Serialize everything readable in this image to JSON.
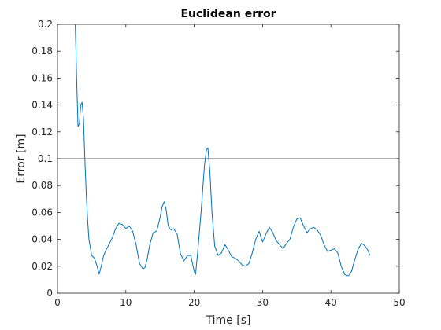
{
  "chart_data": {
    "type": "line",
    "title": "Euclidean error",
    "xlabel": "Time [s]",
    "ylabel": "Error [m]",
    "xlim": [
      0,
      50
    ],
    "ylim": [
      0,
      0.2
    ],
    "xticks": [
      0,
      10,
      20,
      30,
      40,
      50
    ],
    "xtick_labels": [
      "0",
      "10",
      "20",
      "30",
      "40",
      "50"
    ],
    "yticks": [
      0,
      0.02,
      0.04,
      0.06,
      0.08,
      0.1,
      0.12,
      0.14,
      0.16,
      0.18,
      0.2
    ],
    "ytick_labels": [
      "0",
      "0.02",
      "0.04",
      "0.06",
      "0.08",
      "0.1",
      "0.12",
      "0.14",
      "0.16",
      "0.18",
      "0.2"
    ],
    "grid": false,
    "legend": "none",
    "series": [
      {
        "color": "#0072bd",
        "x": [
          2.6,
          2.8,
          3.0,
          3.2,
          3.4,
          3.6,
          3.8,
          4.0,
          4.2,
          4.4,
          4.6,
          5.0,
          5.4,
          5.8,
          6.1,
          6.4,
          6.7,
          7.0,
          7.5,
          8.0,
          8.5,
          9.0,
          9.5,
          10.0,
          10.5,
          11.0,
          11.5,
          12.0,
          12.5,
          12.8,
          13.1,
          13.5,
          14.0,
          14.5,
          15.0,
          15.3,
          15.6,
          15.9,
          16.2,
          16.6,
          17.0,
          17.5,
          18.0,
          18.5,
          19.0,
          19.5,
          20.0,
          20.2,
          20.5,
          21.0,
          21.5,
          21.8,
          22.0,
          22.3,
          22.6,
          23.0,
          23.5,
          24.0,
          24.5,
          25.0,
          25.5,
          26.0,
          26.5,
          27.0,
          27.5,
          28.0,
          28.5,
          29.0,
          29.5,
          30.0,
          30.5,
          31.0,
          31.5,
          32.0,
          32.5,
          33.0,
          33.5,
          34.0,
          34.5,
          35.0,
          35.5,
          36.0,
          36.5,
          37.0,
          37.5,
          38.0,
          38.5,
          39.0,
          39.5,
          40.0,
          40.5,
          41.0,
          41.5,
          42.0,
          42.3,
          42.6,
          43.0,
          43.5,
          44.0,
          44.5,
          45.0,
          45.4,
          45.7
        ],
        "y": [
          0.2,
          0.16,
          0.124,
          0.126,
          0.14,
          0.142,
          0.13,
          0.1,
          0.075,
          0.055,
          0.04,
          0.028,
          0.026,
          0.02,
          0.014,
          0.02,
          0.027,
          0.031,
          0.036,
          0.041,
          0.048,
          0.052,
          0.051,
          0.048,
          0.05,
          0.046,
          0.036,
          0.022,
          0.018,
          0.019,
          0.025,
          0.036,
          0.045,
          0.046,
          0.056,
          0.064,
          0.068,
          0.062,
          0.05,
          0.047,
          0.048,
          0.044,
          0.029,
          0.024,
          0.028,
          0.028,
          0.016,
          0.014,
          0.03,
          0.06,
          0.095,
          0.107,
          0.108,
          0.09,
          0.06,
          0.035,
          0.028,
          0.03,
          0.036,
          0.032,
          0.027,
          0.026,
          0.024,
          0.021,
          0.02,
          0.022,
          0.03,
          0.04,
          0.046,
          0.038,
          0.044,
          0.049,
          0.045,
          0.039,
          0.036,
          0.033,
          0.037,
          0.04,
          0.049,
          0.055,
          0.056,
          0.05,
          0.045,
          0.048,
          0.049,
          0.047,
          0.043,
          0.036,
          0.031,
          0.032,
          0.033,
          0.03,
          0.02,
          0.014,
          0.013,
          0.013,
          0.016,
          0.025,
          0.033,
          0.037,
          0.035,
          0.032,
          0.028
        ]
      }
    ],
    "reference_line": {
      "y": 0.1,
      "color": "#262626"
    }
  }
}
